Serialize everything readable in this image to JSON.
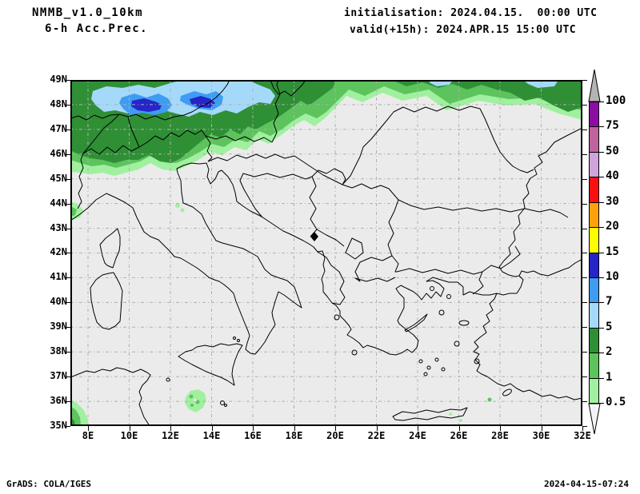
{
  "header": {
    "model": "NMMB_v1.0_10km",
    "product": "6-h Acc.Prec.",
    "init_label": "initialisation: 2024.04.15.  00:00 UTC",
    "valid_label": "valid(+15h): 2024.APR.15 15:00 UTC"
  },
  "axes": {
    "lat_labels": [
      "49N",
      "48N",
      "47N",
      "46N",
      "45N",
      "44N",
      "43N",
      "42N",
      "41N",
      "40N",
      "39N",
      "38N",
      "37N",
      "36N",
      "35N"
    ],
    "lon_labels": [
      "8E",
      "10E",
      "12E",
      "14E",
      "16E",
      "18E",
      "20E",
      "22E",
      "24E",
      "26E",
      "28E",
      "30E",
      "32E"
    ]
  },
  "colorbar": {
    "labels": [
      "100",
      "75",
      "50",
      "40",
      "30",
      "20",
      "15",
      "10",
      "7",
      "5",
      "2",
      "1",
      "0.5"
    ],
    "colors_top_to_bottom": [
      "#8c0ca4",
      "#c0649c",
      "#cfa3dc",
      "#fb1010",
      "#ffa20a",
      "#fdfd02",
      "#2525c8",
      "#3e9cf2",
      "#a5d9fa",
      "#2f8f35",
      "#5dc35d",
      "#a0f0a0"
    ],
    "over_color": "#b4b4b4",
    "under_color": "#f4f4f4"
  },
  "map_colors": {
    "background": "#ebebeb",
    "grid": "#b0b0b0",
    "coast": "#000000",
    "precip_light_green": "#a0f0a0",
    "precip_med_green": "#5dc35d",
    "precip_dark_green": "#2f8f35",
    "precip_light_blue": "#a5d9fa",
    "precip_med_blue": "#3e9cf2",
    "precip_dark_blue": "#2525c8"
  },
  "footer": {
    "left": "GrADS: COLA/IGES",
    "right": "2024-04-15-07:24"
  }
}
